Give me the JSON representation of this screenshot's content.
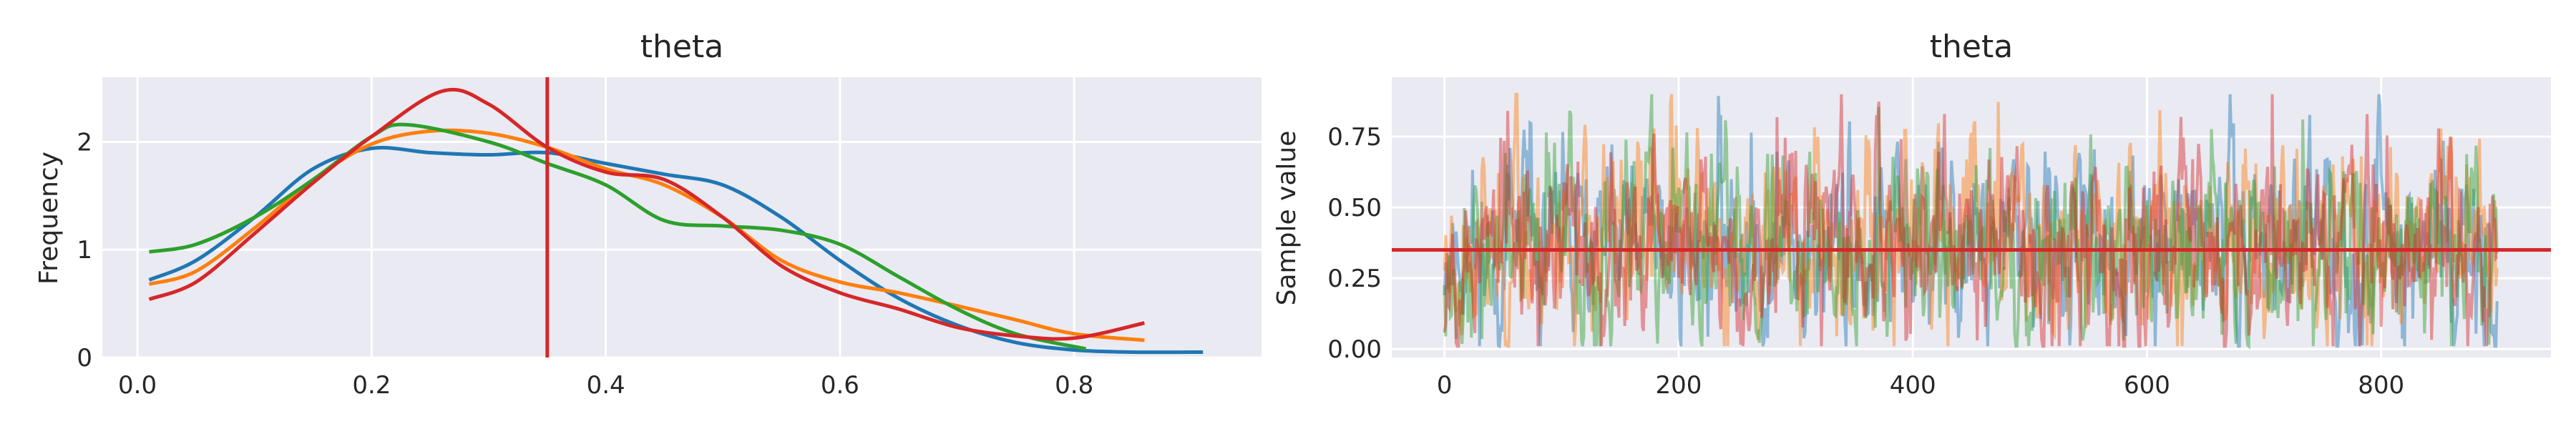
{
  "chart_data": [
    {
      "type": "line",
      "title": "theta",
      "xlabel": "",
      "ylabel": "Frequency",
      "xlim": [
        -0.03,
        0.96
      ],
      "ylim": [
        0,
        2.6
      ],
      "xticks": [
        0.0,
        0.2,
        0.4,
        0.6,
        0.8
      ],
      "xtick_labels": [
        "0.0",
        "0.2",
        "0.4",
        "0.6",
        "0.8"
      ],
      "yticks": [
        0,
        1,
        2
      ],
      "ytick_labels": [
        "0",
        "1",
        "2"
      ],
      "grid": true,
      "reference_line": {
        "orientation": "vertical",
        "value": 0.35,
        "color": "#d62728"
      },
      "series": [
        {
          "color": "#1f77b4",
          "points": [
            [
              0.01,
              0.72
            ],
            [
              0.05,
              0.9
            ],
            [
              0.1,
              1.3
            ],
            [
              0.15,
              1.75
            ],
            [
              0.2,
              1.94
            ],
            [
              0.25,
              1.9
            ],
            [
              0.3,
              1.88
            ],
            [
              0.35,
              1.9
            ],
            [
              0.4,
              1.8
            ],
            [
              0.45,
              1.7
            ],
            [
              0.5,
              1.6
            ],
            [
              0.55,
              1.3
            ],
            [
              0.6,
              0.9
            ],
            [
              0.65,
              0.55
            ],
            [
              0.7,
              0.3
            ],
            [
              0.75,
              0.14
            ],
            [
              0.8,
              0.07
            ],
            [
              0.85,
              0.05
            ],
            [
              0.91,
              0.05
            ]
          ]
        },
        {
          "color": "#ff7f0e",
          "points": [
            [
              0.01,
              0.68
            ],
            [
              0.05,
              0.8
            ],
            [
              0.1,
              1.2
            ],
            [
              0.15,
              1.65
            ],
            [
              0.2,
              1.98
            ],
            [
              0.25,
              2.1
            ],
            [
              0.3,
              2.08
            ],
            [
              0.35,
              1.95
            ],
            [
              0.4,
              1.75
            ],
            [
              0.45,
              1.6
            ],
            [
              0.5,
              1.3
            ],
            [
              0.55,
              0.9
            ],
            [
              0.6,
              0.7
            ],
            [
              0.65,
              0.6
            ],
            [
              0.7,
              0.48
            ],
            [
              0.75,
              0.35
            ],
            [
              0.8,
              0.22
            ],
            [
              0.86,
              0.16
            ]
          ]
        },
        {
          "color": "#2ca02c",
          "points": [
            [
              0.01,
              0.98
            ],
            [
              0.05,
              1.05
            ],
            [
              0.1,
              1.3
            ],
            [
              0.15,
              1.65
            ],
            [
              0.2,
              2.05
            ],
            [
              0.23,
              2.16
            ],
            [
              0.3,
              2.0
            ],
            [
              0.35,
              1.8
            ],
            [
              0.4,
              1.6
            ],
            [
              0.45,
              1.27
            ],
            [
              0.5,
              1.22
            ],
            [
              0.55,
              1.18
            ],
            [
              0.6,
              1.05
            ],
            [
              0.65,
              0.75
            ],
            [
              0.7,
              0.45
            ],
            [
              0.75,
              0.22
            ],
            [
              0.81,
              0.08
            ]
          ]
        },
        {
          "color": "#d62728",
          "points": [
            [
              0.01,
              0.54
            ],
            [
              0.05,
              0.7
            ],
            [
              0.1,
              1.15
            ],
            [
              0.15,
              1.62
            ],
            [
              0.2,
              2.05
            ],
            [
              0.26,
              2.47
            ],
            [
              0.3,
              2.35
            ],
            [
              0.35,
              1.95
            ],
            [
              0.4,
              1.72
            ],
            [
              0.45,
              1.65
            ],
            [
              0.5,
              1.3
            ],
            [
              0.55,
              0.85
            ],
            [
              0.6,
              0.6
            ],
            [
              0.65,
              0.45
            ],
            [
              0.7,
              0.28
            ],
            [
              0.75,
              0.2
            ],
            [
              0.8,
              0.18
            ],
            [
              0.86,
              0.32
            ]
          ]
        }
      ]
    },
    {
      "type": "line",
      "title": "theta",
      "xlabel": "",
      "ylabel": "Sample value",
      "xlim": [
        -45,
        945
      ],
      "ylim": [
        -0.03,
        0.96
      ],
      "xticks": [
        0,
        200,
        400,
        600,
        800
      ],
      "xtick_labels": [
        "0",
        "200",
        "400",
        "600",
        "800"
      ],
      "yticks": [
        0.0,
        0.25,
        0.5,
        0.75
      ],
      "ytick_labels": [
        "0.00",
        "0.25",
        "0.50",
        "0.75"
      ],
      "grid": true,
      "n_draws": 900,
      "reference_line": {
        "orientation": "horizontal",
        "value": 0.35,
        "color": "#d62728"
      },
      "series": [
        {
          "color": "#1f77b4",
          "mean": 0.36,
          "spread": 0.15,
          "seed": 11
        },
        {
          "color": "#ff7f0e",
          "mean": 0.37,
          "spread": 0.16,
          "seed": 23
        },
        {
          "color": "#2ca02c",
          "mean": 0.35,
          "spread": 0.15,
          "seed": 37
        },
        {
          "color": "#d62728",
          "mean": 0.36,
          "spread": 0.16,
          "seed": 53
        }
      ]
    }
  ]
}
